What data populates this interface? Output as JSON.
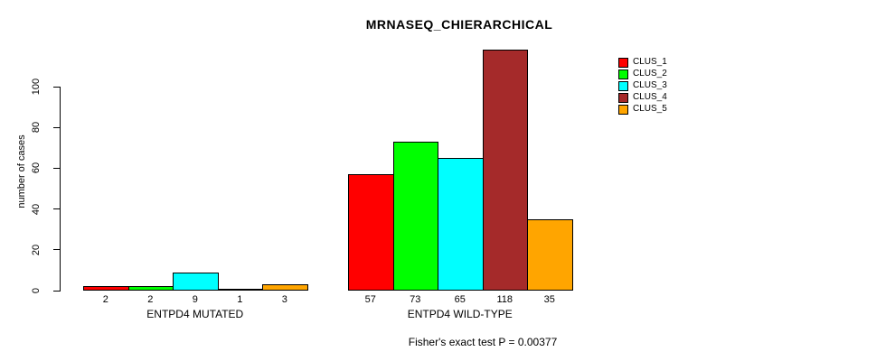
{
  "title": "MRNASEQ_CHIERARCHICAL",
  "caption": "Fisher's exact test P = 0.00377",
  "chart_data": {
    "type": "bar",
    "title": "MRNASEQ_CHIERARCHICAL",
    "xlabel": "",
    "ylabel": "number of cases",
    "yticks": [
      0,
      20,
      40,
      60,
      80,
      100
    ],
    "ylim": [
      0,
      118
    ],
    "grid": false,
    "legend_position": "top-right",
    "categories": [
      "ENTPD4 MUTATED",
      "ENTPD4 WILD-TYPE"
    ],
    "groups": [
      {
        "label": "ENTPD4 MUTATED",
        "values": [
          2,
          2,
          9,
          1,
          3
        ]
      },
      {
        "label": "ENTPD4 WILD-TYPE",
        "values": [
          57,
          73,
          65,
          118,
          35
        ]
      }
    ],
    "series": [
      {
        "name": "CLUS_1",
        "color": "#ff0000",
        "values": [
          2,
          57
        ]
      },
      {
        "name": "CLUS_2",
        "color": "#00ff00",
        "values": [
          2,
          73
        ]
      },
      {
        "name": "CLUS_3",
        "color": "#00ffff",
        "values": [
          9,
          65
        ]
      },
      {
        "name": "CLUS_4",
        "color": "#a52a2a",
        "values": [
          1,
          118
        ]
      },
      {
        "name": "CLUS_5",
        "color": "#ffa500",
        "values": [
          3,
          35
        ]
      }
    ],
    "annotation": "Fisher's exact test P = 0.00377"
  },
  "legend": {
    "items": [
      {
        "label": "CLUS_1",
        "color": "#ff0000"
      },
      {
        "label": "CLUS_2",
        "color": "#00ff00"
      },
      {
        "label": "CLUS_3",
        "color": "#00ffff"
      },
      {
        "label": "CLUS_4",
        "color": "#a52a2a"
      },
      {
        "label": "CLUS_5",
        "color": "#ffa500"
      }
    ]
  }
}
